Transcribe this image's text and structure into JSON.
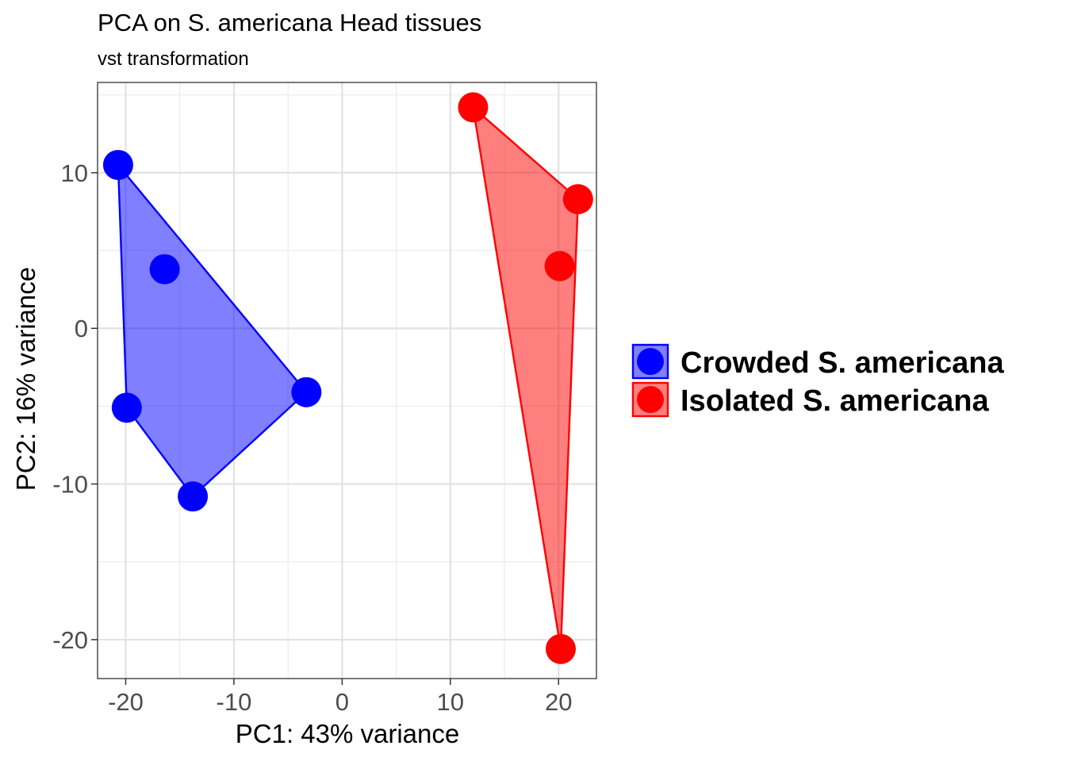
{
  "chart_data": {
    "type": "scatter",
    "title": "PCA on S. americana Head tissues",
    "subtitle": "vst transformation",
    "xlabel": "PC1: 43% variance",
    "ylabel": "PC2: 16% variance",
    "xlim": [
      -22.6,
      23.5
    ],
    "ylim": [
      -22.5,
      15.8
    ],
    "xticks": [
      -20,
      -10,
      0,
      10,
      20
    ],
    "xtick_labels": [
      "-20",
      "-10",
      "0",
      "10",
      "20"
    ],
    "yticks": [
      -20,
      -10,
      0,
      10
    ],
    "ytick_labels": [
      "-20",
      "-10",
      "0",
      "10"
    ],
    "grid": true,
    "legend_position": "right",
    "series": [
      {
        "name": "Crowded S. americana",
        "color": "#0000ff",
        "hull": true,
        "points": [
          {
            "x": -20.7,
            "y": 10.5
          },
          {
            "x": -16.4,
            "y": 3.8
          },
          {
            "x": -3.3,
            "y": -4.1
          },
          {
            "x": -19.9,
            "y": -5.1
          },
          {
            "x": -13.8,
            "y": -10.8
          }
        ]
      },
      {
        "name": "Isolated S. americana",
        "color": "#ff0000",
        "hull": true,
        "points": [
          {
            "x": 12.1,
            "y": 14.2
          },
          {
            "x": 21.8,
            "y": 8.3
          },
          {
            "x": 20.1,
            "y": 4.0
          },
          {
            "x": 20.2,
            "y": -20.6
          }
        ]
      }
    ]
  }
}
